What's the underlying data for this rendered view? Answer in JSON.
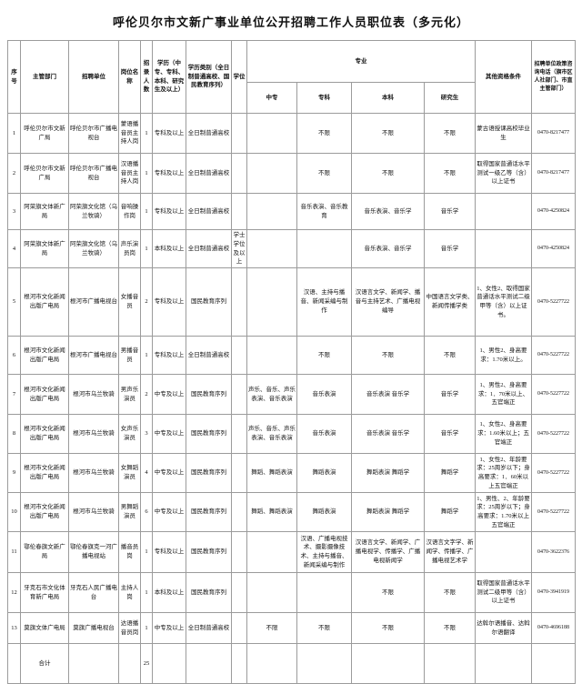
{
  "title": "呼伦贝尔市文新广事业单位公开招聘工作人员职位表（多元化）",
  "header": {
    "no": "序号",
    "dept": "主管部门",
    "unit": "招聘单位",
    "position": "岗位名称",
    "count": "招录人数",
    "edu": "学历（中专、专科、本科、研究生及以上）",
    "edu_type": "学历类别（全日制普通高校、国民教育序列）",
    "degree": "学位",
    "major_group": "专业",
    "major_zhongzhuan": "中专",
    "major_zhuanke": "专科",
    "major_benke": "本科",
    "major_yanjiusheng": "研究生",
    "other": "其他资格条件",
    "phone": "招聘单位政策咨询电话（旗市区人社部门、市直主管部门）"
  },
  "rows": [
    {
      "no": "1",
      "dept": "呼伦贝尔市文新广局",
      "unit": "呼伦贝尔市广播电视台",
      "position": "蒙语播音员主持人岗",
      "count": "1",
      "edu": "专科及以上",
      "edu_type": "全日制普通高校",
      "degree": "",
      "major_zhongzhuan": "",
      "major_zhuanke": "不限",
      "major_benke": "不限",
      "major_yanjiusheng": "不限",
      "other": "蒙古语授课高校毕业生",
      "phone": "0470-8217477"
    },
    {
      "no": "2",
      "dept": "呼伦贝尔市文新广局",
      "unit": "呼伦贝尔市广播电视台",
      "position": "汉语播音员主持人岗",
      "count": "1",
      "edu": "专科及以上",
      "edu_type": "全日制普通高校",
      "degree": "",
      "major_zhongzhuan": "",
      "major_zhuanke": "不限",
      "major_benke": "不限",
      "major_yanjiusheng": "不限",
      "other": "取得国家普通话水平测试一级乙等（含）以上证书",
      "phone": "0470-8217477"
    },
    {
      "no": "3",
      "dept": "阿荣旗文体新广局",
      "unit": "阿荣旗文化馆（乌兰牧骑）",
      "position": "音响操作岗",
      "count": "1",
      "edu": "专科及以上",
      "edu_type": "全日制普通高校",
      "degree": "",
      "major_zhongzhuan": "",
      "major_zhuanke": "音乐表演、音乐教育",
      "major_benke": "音乐表演、音乐学",
      "major_yanjiusheng": "音乐学",
      "other": "",
      "phone": "0470-4250824"
    },
    {
      "no": "4",
      "dept": "阿荣旗文体新广局",
      "unit": "阿荣旗文化馆（乌兰牧骑）",
      "position": "声乐演员岗",
      "count": "1",
      "edu": "本科及以上",
      "edu_type": "全日制普通高校",
      "degree": "学士学位及以上",
      "major_zhongzhuan": "",
      "major_zhuanke": "",
      "major_benke": "音乐表演、音乐学",
      "major_yanjiusheng": "音乐学",
      "other": "",
      "phone": "0470-4250824"
    },
    {
      "no": "5",
      "dept": "根河市文化新闻出版广电局",
      "unit": "根河市广播电视台",
      "position": "女播音员",
      "count": "2",
      "edu": "专科及以上",
      "edu_type": "国民教育序列",
      "degree": "",
      "major_zhongzhuan": "",
      "major_zhuanke": "汉语、主持与播音、新闻采编与制作",
      "major_benke": "汉语言文学、新闻学、播音与主持艺术、广播电视编导",
      "major_yanjiusheng": "中国语言文学类、新闻传播学类",
      "other": "1、女性2、取得国家普通话水平测试二级甲等（含）以上证书。",
      "phone": "0470-5227722"
    },
    {
      "no": "6",
      "dept": "根河市文化新闻出版广电局",
      "unit": "根河市广播电视台",
      "position": "男播音员",
      "count": "1",
      "edu": "专科及以上",
      "edu_type": "全日制普通高校",
      "degree": "",
      "major_zhongzhuan": "",
      "major_zhuanke": "不限",
      "major_benke": "不限",
      "major_yanjiusheng": "不限",
      "other": "1、男性2、身高要求：1.70米以上。",
      "phone": "0470-5227722"
    },
    {
      "no": "7",
      "dept": "根河市文化新闻出版广电局",
      "unit": "根河市乌兰牧骑",
      "position": "男声乐演员",
      "count": "2",
      "edu": "中专及以上",
      "edu_type": "国民教育序列",
      "degree": "",
      "major_zhongzhuan": "声乐、音乐、声乐表演、音乐表演",
      "major_zhuanke": "音乐表演",
      "major_benke": "音乐表演 音乐学",
      "major_yanjiusheng": "音乐学",
      "other": "1、男性2、身高要求：1．70米以上、五官端正",
      "phone": "0470-5227722"
    },
    {
      "no": "8",
      "dept": "根河市文化新闻出版广电局",
      "unit": "根河市乌兰牧骑",
      "position": "女声乐演员",
      "count": "3",
      "edu": "中专及以上",
      "edu_type": "国民教育序列",
      "degree": "",
      "major_zhongzhuan": "声乐、音乐、声乐表演、音乐表演",
      "major_zhuanke": "音乐表演",
      "major_benke": "音乐表演 音乐学",
      "major_yanjiusheng": "音乐学",
      "other": "1、女性2、身高要求：1.60米以上；五官端正",
      "phone": "0470-5227722"
    },
    {
      "no": "9",
      "dept": "根河市文化新闻出版广电局",
      "unit": "根河市乌兰牧骑",
      "position": "女舞蹈演员",
      "count": "4",
      "edu": "中专及以上",
      "edu_type": "国民教育序列",
      "degree": "",
      "major_zhongzhuan": "舞蹈、舞蹈表演",
      "major_zhuanke": "舞蹈表演",
      "major_benke": "舞蹈表演 舞蹈学",
      "major_yanjiusheng": "舞蹈学",
      "other": "1、女性2、年龄要求：25周岁以下；身高要求：1．60米以上五官端正",
      "phone": "0470-5227722"
    },
    {
      "no": "10",
      "dept": "根河市文化新闻出版广电局",
      "unit": "根河市乌兰牧骑",
      "position": "男舞蹈演员",
      "count": "6",
      "edu": "中专及以上",
      "edu_type": "国民教育序列",
      "degree": "",
      "major_zhongzhuan": "舞蹈、舞蹈表演",
      "major_zhuanke": "舞蹈表演",
      "major_benke": "舞蹈表演 舞蹈学",
      "major_yanjiusheng": "舞蹈学",
      "other": "1、男性、2、年龄要求：25周岁以下；身高要求：1.70米以上五官端正",
      "phone": "0470-5227722"
    },
    {
      "no": "11",
      "dept": "鄂伦春旗文新广局",
      "unit": "鄂伦春旗克一河广播电视站",
      "position": "播音员岗",
      "count": "1",
      "edu": "专科及以上",
      "edu_type": "国民教育序列",
      "degree": "",
      "major_zhongzhuan": "",
      "major_zhuanke": "汉语、广播电视技术、摄影摄像技术、主持与播音、新闻采编与制作",
      "major_benke": "汉语言文学、新闻学、广播电视学、传播学、广播电视新闻学",
      "major_yanjiusheng": "汉语言文字学、新闻学、传播学、广播电视艺术学",
      "other": "",
      "phone": "0470-3622376"
    },
    {
      "no": "12",
      "dept": "牙克石市文化体育新广电局",
      "unit": "牙克石人民广播电台",
      "position": "主持人岗",
      "count": "1",
      "edu": "本科及以上",
      "edu_type": "国民教育序列",
      "degree": "",
      "major_zhongzhuan": "",
      "major_zhuanke": "",
      "major_benke": "不限",
      "major_yanjiusheng": "不限",
      "other": "取得国家普通话水平测试二级甲等（含）以上证书",
      "phone": "0470-3941919"
    },
    {
      "no": "13",
      "dept": "莫旗文体广电局",
      "unit": "莫旗广播电视台",
      "position": "达语播音员岗",
      "count": "1",
      "edu": "中专及以上",
      "edu_type": "全日制普通高校",
      "degree": "",
      "major_zhongzhuan": "不限",
      "major_zhuanke": "不限",
      "major_benke": "不限",
      "major_yanjiusheng": "不限",
      "other": "达斡尔语播音、达斡尔语翻译",
      "phone": "0470-4696188"
    }
  ],
  "total": {
    "label": "合计",
    "count": "25"
  }
}
